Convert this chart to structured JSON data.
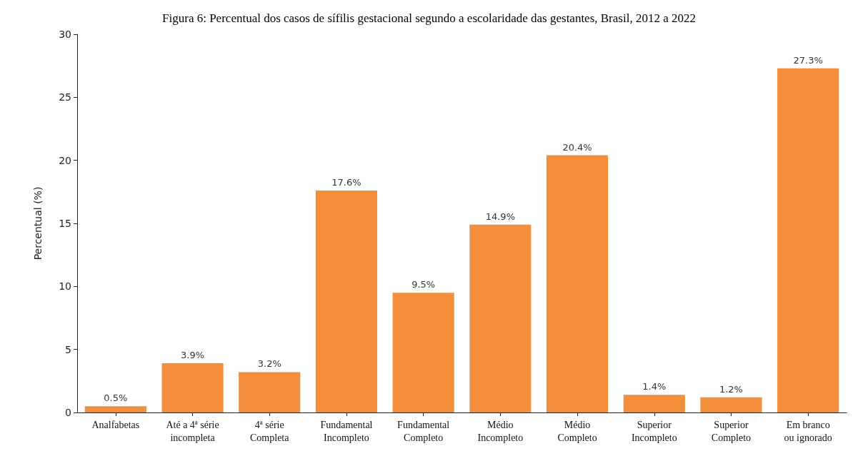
{
  "chart_data": {
    "type": "bar",
    "title": "Figura 6: Percentual dos casos de sífilis gestacional segundo a escolaridade das gestantes, Brasil, 2012 a 2022",
    "ylabel": "Percentual (%)",
    "categories": [
      "Analfabetas",
      "Até a 4ª série\nincompleta",
      "4ª série\nCompleta",
      "Fundamental\nIncompleto",
      "Fundamental\nCompleto",
      "Médio\nIncompleto",
      "Médio\nCompleto",
      "Superior\nIncompleto",
      "Superior\nCompleto",
      "Em branco\nou ignorado"
    ],
    "values": [
      0.5,
      3.9,
      3.2,
      17.6,
      9.5,
      14.9,
      20.4,
      1.4,
      1.2,
      27.3
    ],
    "value_labels": [
      "0.5%",
      "3.9%",
      "3.2%",
      "17.6%",
      "9.5%",
      "14.9%",
      "20.4%",
      "1.4%",
      "1.2%",
      "27.3%"
    ],
    "color": "#f28e3c",
    "ylim": [
      0,
      30
    ],
    "yticks": [
      0,
      5,
      10,
      15,
      20,
      25,
      30
    ],
    "grid": false
  }
}
